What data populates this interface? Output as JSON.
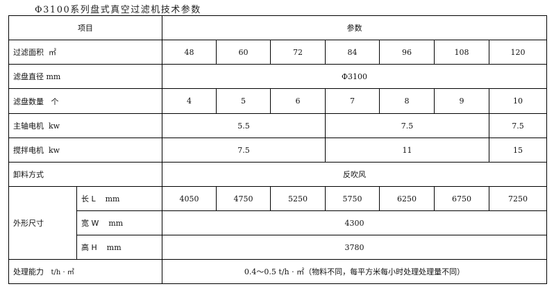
{
  "title": "Φ3100系列盘式真空过滤机技术参数",
  "header": {
    "item": "项目",
    "params": "参数"
  },
  "rows": {
    "area": {
      "label": "过滤面积",
      "unit": "㎡",
      "values": [
        "48",
        "60",
        "72",
        "84",
        "96",
        "108",
        "120"
      ]
    },
    "diameter": {
      "label": "滤盘直径",
      "unit": "mm",
      "value": "Φ3100"
    },
    "disc_count": {
      "label": "滤盘数量",
      "unit": "个",
      "values": [
        "4",
        "5",
        "6",
        "7",
        "8",
        "9",
        "10"
      ]
    },
    "main_motor": {
      "label": "主轴电机",
      "unit": "kw",
      "values": [
        "5.5",
        "7.5",
        "7.5"
      ]
    },
    "stir_motor": {
      "label": "搅拌电机",
      "unit": "kw",
      "values": [
        "7.5",
        "11",
        "15"
      ]
    },
    "discharge": {
      "label": "卸料方式",
      "value": "反吹风"
    },
    "dimensions": {
      "label": "外形尺寸",
      "length": {
        "label": "长 L",
        "unit": "mm",
        "values": [
          "4050",
          "4750",
          "5250",
          "5750",
          "6250",
          "6750",
          "7250"
        ]
      },
      "width": {
        "label": "宽 W",
        "unit": "mm",
        "value": "4300"
      },
      "height": {
        "label": "高 H",
        "unit": "mm",
        "value": "3780"
      }
    },
    "capacity": {
      "label": "处理能力",
      "unit": "t/h · ㎡",
      "value_num": "0.4～0.5 t/h · ㎡",
      "value_note": "（物料不同，每平方米每小时处理处理量不同）"
    }
  }
}
